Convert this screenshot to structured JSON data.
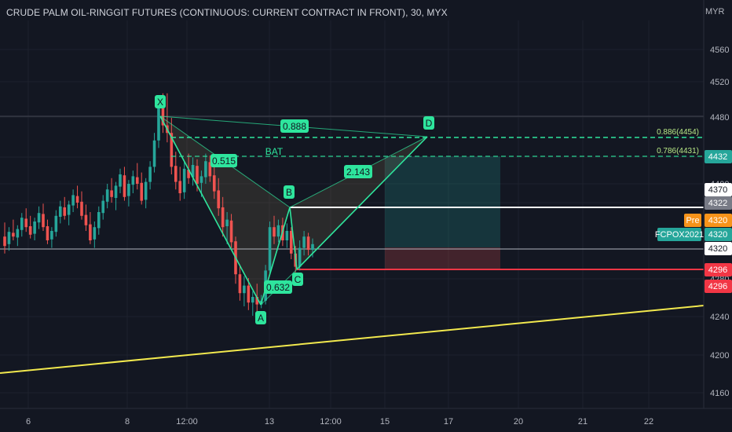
{
  "header": {
    "title": "CRUDE PALM OIL-RINGGIT FUTURES (CONTINUOUS: CURRENT CONTRACT IN FRONT), 30, MYX",
    "currency": "MYR"
  },
  "colors": {
    "background": "#131722",
    "grid": "#1e222d",
    "up": "#26a69a",
    "down": "#ef5350",
    "pattern": "#2ee59d",
    "trendline": "#f2e94e",
    "stop": "#f23645",
    "axis_text": "#b2b5be"
  },
  "chart_data": {
    "type": "candlestick",
    "y_axis": {
      "ticks": [
        4160,
        4200,
        4240,
        4280,
        4320,
        4370,
        4400,
        4440,
        4480,
        4520,
        4560
      ],
      "tick_labels": [
        "4160",
        "4200",
        "4240",
        "4280",
        "4320",
        "4370",
        "4400",
        "4440",
        "4480",
        "4520",
        "4560"
      ]
    },
    "x_axis": {
      "tick_labels": [
        "6",
        "8",
        "12:00",
        "13",
        "12:00",
        "15",
        "17",
        "20",
        "21",
        "22"
      ]
    },
    "candles": [
      {
        "o": 4330,
        "h": 4345,
        "l": 4312,
        "c": 4320
      },
      {
        "o": 4322,
        "h": 4340,
        "l": 4315,
        "c": 4335
      },
      {
        "o": 4334,
        "h": 4348,
        "l": 4326,
        "c": 4330
      },
      {
        "o": 4329,
        "h": 4342,
        "l": 4320,
        "c": 4338
      },
      {
        "o": 4337,
        "h": 4355,
        "l": 4330,
        "c": 4350
      },
      {
        "o": 4349,
        "h": 4360,
        "l": 4335,
        "c": 4340
      },
      {
        "o": 4341,
        "h": 4352,
        "l": 4328,
        "c": 4332
      },
      {
        "o": 4333,
        "h": 4350,
        "l": 4326,
        "c": 4346
      },
      {
        "o": 4345,
        "h": 4362,
        "l": 4338,
        "c": 4355
      },
      {
        "o": 4354,
        "h": 4365,
        "l": 4336,
        "c": 4340
      },
      {
        "o": 4341,
        "h": 4348,
        "l": 4322,
        "c": 4326
      },
      {
        "o": 4327,
        "h": 4340,
        "l": 4318,
        "c": 4336
      },
      {
        "o": 4335,
        "h": 4358,
        "l": 4330,
        "c": 4352
      },
      {
        "o": 4351,
        "h": 4368,
        "l": 4344,
        "c": 4362
      },
      {
        "o": 4361,
        "h": 4372,
        "l": 4348,
        "c": 4352
      },
      {
        "o": 4353,
        "h": 4368,
        "l": 4342,
        "c": 4364
      },
      {
        "o": 4363,
        "h": 4380,
        "l": 4356,
        "c": 4374
      },
      {
        "o": 4373,
        "h": 4384,
        "l": 4360,
        "c": 4366
      },
      {
        "o": 4367,
        "h": 4378,
        "l": 4348,
        "c": 4352
      },
      {
        "o": 4353,
        "h": 4364,
        "l": 4336,
        "c": 4342
      },
      {
        "o": 4343,
        "h": 4356,
        "l": 4322,
        "c": 4326
      },
      {
        "o": 4327,
        "h": 4346,
        "l": 4318,
        "c": 4340
      },
      {
        "o": 4339,
        "h": 4362,
        "l": 4332,
        "c": 4356
      },
      {
        "o": 4355,
        "h": 4374,
        "l": 4348,
        "c": 4368
      },
      {
        "o": 4367,
        "h": 4386,
        "l": 4360,
        "c": 4380
      },
      {
        "o": 4379,
        "h": 4392,
        "l": 4366,
        "c": 4372
      },
      {
        "o": 4371,
        "h": 4388,
        "l": 4358,
        "c": 4384
      },
      {
        "o": 4383,
        "h": 4402,
        "l": 4376,
        "c": 4396
      },
      {
        "o": 4395,
        "h": 4404,
        "l": 4368,
        "c": 4372
      },
      {
        "o": 4373,
        "h": 4390,
        "l": 4362,
        "c": 4386
      },
      {
        "o": 4385,
        "h": 4400,
        "l": 4376,
        "c": 4394
      },
      {
        "o": 4393,
        "h": 4408,
        "l": 4380,
        "c": 4386
      },
      {
        "o": 4387,
        "h": 4398,
        "l": 4364,
        "c": 4368
      },
      {
        "o": 4369,
        "h": 4392,
        "l": 4360,
        "c": 4388
      },
      {
        "o": 4388,
        "h": 4410,
        "l": 4380,
        "c": 4404
      },
      {
        "o": 4404,
        "h": 4440,
        "l": 4398,
        "c": 4432
      },
      {
        "o": 4432,
        "h": 4480,
        "l": 4424,
        "c": 4466
      },
      {
        "o": 4466,
        "h": 4482,
        "l": 4440,
        "c": 4448
      },
      {
        "o": 4448,
        "h": 4482,
        "l": 4430,
        "c": 4440
      },
      {
        "o": 4440,
        "h": 4456,
        "l": 4396,
        "c": 4404
      },
      {
        "o": 4405,
        "h": 4420,
        "l": 4380,
        "c": 4388
      },
      {
        "o": 4389,
        "h": 4404,
        "l": 4368,
        "c": 4376
      },
      {
        "o": 4377,
        "h": 4410,
        "l": 4370,
        "c": 4402
      },
      {
        "o": 4401,
        "h": 4418,
        "l": 4386,
        "c": 4392
      },
      {
        "o": 4393,
        "h": 4414,
        "l": 4384,
        "c": 4406
      },
      {
        "o": 4405,
        "h": 4412,
        "l": 4378,
        "c": 4386
      },
      {
        "o": 4387,
        "h": 4400,
        "l": 4372,
        "c": 4394
      },
      {
        "o": 4393,
        "h": 4418,
        "l": 4386,
        "c": 4410
      },
      {
        "o": 4409,
        "h": 4416,
        "l": 4388,
        "c": 4394
      },
      {
        "o": 4395,
        "h": 4406,
        "l": 4370,
        "c": 4378
      },
      {
        "o": 4379,
        "h": 4392,
        "l": 4352,
        "c": 4360
      },
      {
        "o": 4361,
        "h": 4372,
        "l": 4330,
        "c": 4340
      },
      {
        "o": 4341,
        "h": 4356,
        "l": 4322,
        "c": 4348
      },
      {
        "o": 4347,
        "h": 4354,
        "l": 4318,
        "c": 4324
      },
      {
        "o": 4325,
        "h": 4330,
        "l": 4280,
        "c": 4290
      },
      {
        "o": 4290,
        "h": 4300,
        "l": 4262,
        "c": 4270
      },
      {
        "o": 4270,
        "h": 4288,
        "l": 4256,
        "c": 4278
      },
      {
        "o": 4278,
        "h": 4286,
        "l": 4252,
        "c": 4260
      },
      {
        "o": 4260,
        "h": 4272,
        "l": 4246,
        "c": 4266
      },
      {
        "o": 4266,
        "h": 4280,
        "l": 4250,
        "c": 4258
      },
      {
        "o": 4258,
        "h": 4268,
        "l": 4254,
        "c": 4262
      },
      {
        "o": 4262,
        "h": 4300,
        "l": 4258,
        "c": 4294
      },
      {
        "o": 4294,
        "h": 4346,
        "l": 4290,
        "c": 4340
      },
      {
        "o": 4340,
        "h": 4352,
        "l": 4322,
        "c": 4330
      },
      {
        "o": 4330,
        "h": 4348,
        "l": 4324,
        "c": 4342
      },
      {
        "o": 4342,
        "h": 4350,
        "l": 4320,
        "c": 4326
      },
      {
        "o": 4326,
        "h": 4344,
        "l": 4318,
        "c": 4336
      },
      {
        "o": 4336,
        "h": 4340,
        "l": 4306,
        "c": 4312
      },
      {
        "o": 4312,
        "h": 4320,
        "l": 4292,
        "c": 4298
      },
      {
        "o": 4298,
        "h": 4326,
        "l": 4294,
        "c": 4318
      },
      {
        "o": 4318,
        "h": 4336,
        "l": 4310,
        "c": 4330
      },
      {
        "o": 4330,
        "h": 4334,
        "l": 4310,
        "c": 4316
      },
      {
        "o": 4316,
        "h": 4328,
        "l": 4308,
        "c": 4322
      }
    ]
  },
  "pattern": {
    "name": "BAT",
    "points": [
      "X",
      "A",
      "B",
      "C",
      "D"
    ],
    "ratios": [
      "0.888",
      "0.515",
      "2.143",
      "0.632"
    ],
    "fib_levels": [
      "0.886(4454)",
      "0.786(4431)"
    ]
  },
  "price_tags": [
    {
      "label": "4432",
      "bg": "#26a69a",
      "fg": "#ffffff"
    },
    {
      "label": "4370",
      "bg": "#ffffff",
      "fg": "#131722"
    },
    {
      "label": "4322",
      "bg": "#787b86",
      "fg": "#ffffff"
    },
    {
      "label": "4320",
      "bg": "#f7931a",
      "fg": "#ffffff",
      "tag": "Pre"
    },
    {
      "label": "4320",
      "bg": "#26a69a",
      "fg": "#ffffff",
      "tag": "FCPOX2021"
    },
    {
      "label": "4320",
      "bg": "#ffffff",
      "fg": "#131722"
    },
    {
      "label": "4296",
      "bg": "#f23645",
      "fg": "#ffffff"
    },
    {
      "label": "4296",
      "bg": "#f23645",
      "fg": "#ffffff"
    }
  ]
}
